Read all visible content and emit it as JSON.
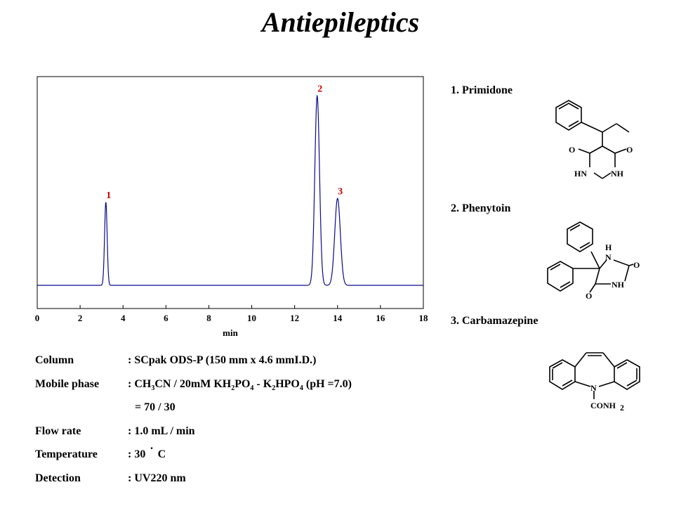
{
  "title": "Antiepileptics",
  "chart_data": {
    "type": "line",
    "xlabel": "min",
    "xlim": [
      0,
      18
    ],
    "xticks": [
      0,
      2,
      4,
      6,
      8,
      10,
      12,
      14,
      16,
      18
    ],
    "ylim": [
      -0.12,
      1.08
    ],
    "baseline": 0,
    "grid": false,
    "line_color": "#0a0a8c",
    "label_color": "#cc0000",
    "peaks": [
      {
        "label": "1",
        "rt": 3.2,
        "height": 0.43,
        "width": 0.06
      },
      {
        "label": "2",
        "rt": 13.05,
        "height": 0.98,
        "width": 0.11
      },
      {
        "label": "3",
        "rt": 14.0,
        "height": 0.45,
        "width": 0.13
      }
    ]
  },
  "conditions": {
    "column": {
      "label": "Column",
      "value": ": SCpak ODS-P  (150 mm x 4.6 mmI.D.)"
    },
    "mobile_phase": {
      "label": "Mobile phase",
      "colon": ": ",
      "ch3cn": {
        "a": "CH",
        "b": "3",
        "c": "CN / 20mM KH"
      },
      "kh2po4": {
        "b": "2",
        "c": "PO",
        "d": "4",
        "e": " - K"
      },
      "k2hpo4": {
        "b": "2",
        "c": "HPO",
        "d": "4",
        "e": " (pH =7.0)"
      },
      "ratio": "= 70 / 30"
    },
    "flow_rate": {
      "label": "Flow rate",
      "value": ": 1.0 mL / min"
    },
    "temperature": {
      "label": "Temperature",
      "value": ": 30",
      "degree": "·",
      "unit": "C"
    },
    "detection": {
      "label": "Detection",
      "value": ": UV220 nm"
    }
  },
  "compounds": [
    {
      "name": "1. Primidone",
      "atoms": [
        "O",
        "O",
        "HN",
        "NH"
      ]
    },
    {
      "name": "2. Phenytoin",
      "atoms": [
        "H",
        "N",
        "O",
        "NH",
        "O"
      ]
    },
    {
      "name": "3. Carbamazepine",
      "atoms": [
        "N",
        "CONH",
        "2"
      ]
    }
  ]
}
